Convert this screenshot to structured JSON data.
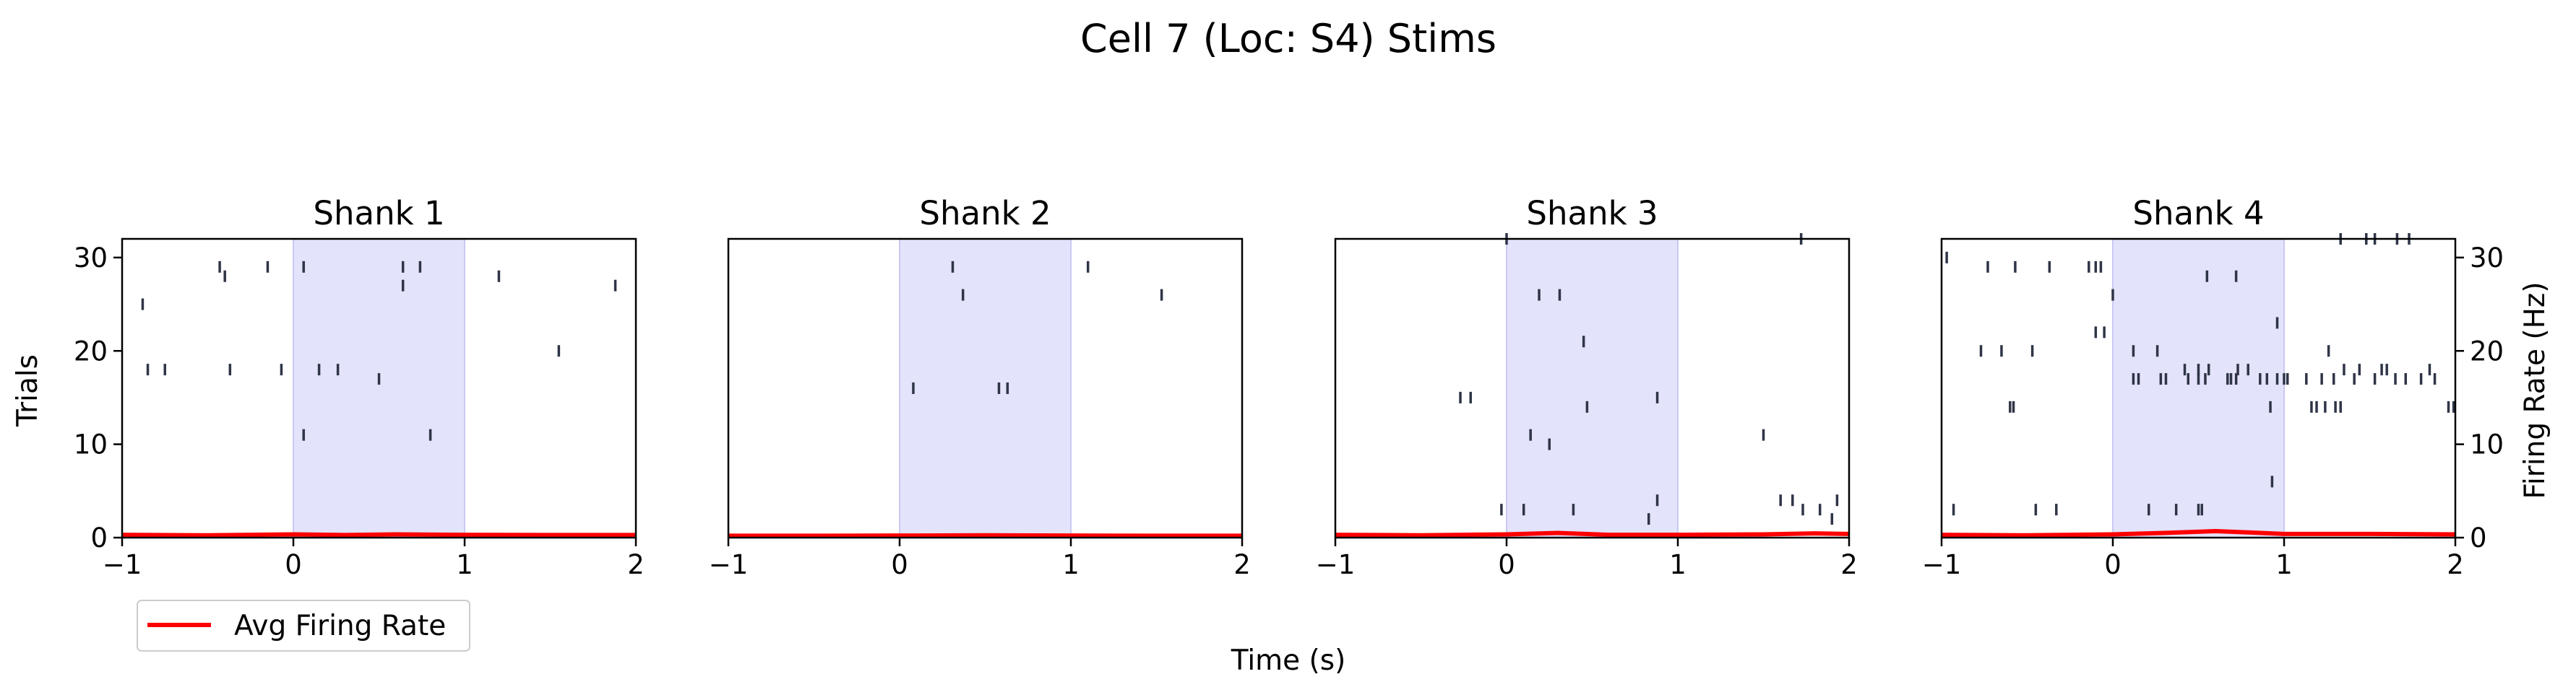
{
  "figure": {
    "suptitle": "Cell 7 (Loc: S4) Stims",
    "xlabel": "Time (s)",
    "ylabel_left": "Trials",
    "ylabel_right": "Firing Rate (Hz)",
    "legend_label": "Avg Firing Rate",
    "colors": {
      "stim_shade": "#e3e3fc",
      "stim_edge": "#c9c9f2",
      "spike": "#2f3547",
      "rate_line": "#ff0000",
      "axis": "#000000"
    }
  },
  "chart_data": [
    {
      "type": "raster",
      "title": "Shank 1",
      "xlim": [
        -1,
        2
      ],
      "xticks": [
        -1,
        0,
        1,
        2
      ],
      "ylim": [
        0,
        32
      ],
      "yticks": [
        0,
        10,
        20,
        30
      ],
      "stim_window": [
        0,
        1
      ],
      "spikes": [
        [
          -0.88,
          25
        ],
        [
          -0.43,
          29
        ],
        [
          -0.4,
          28
        ],
        [
          -0.15,
          29
        ],
        [
          0.06,
          29
        ],
        [
          0.64,
          29
        ],
        [
          0.74,
          29
        ],
        [
          1.2,
          28
        ],
        [
          0.64,
          27
        ],
        [
          1.88,
          27
        ],
        [
          -0.85,
          18
        ],
        [
          -0.75,
          18
        ],
        [
          -0.37,
          18
        ],
        [
          -0.07,
          18
        ],
        [
          0.15,
          18
        ],
        [
          0.26,
          18
        ],
        [
          0.5,
          17
        ],
        [
          1.55,
          20
        ],
        [
          0.06,
          11
        ],
        [
          0.8,
          11
        ]
      ],
      "rate": {
        "x": [
          -1,
          -0.5,
          0,
          0.3,
          0.6,
          1,
          1.5,
          2
        ],
        "y": [
          0.3,
          0.25,
          0.35,
          0.28,
          0.35,
          0.3,
          0.28,
          0.28
        ]
      },
      "rate_ylim": [
        0,
        32
      ]
    },
    {
      "type": "raster",
      "title": "Shank 2",
      "xlim": [
        -1,
        2
      ],
      "xticks": [
        -1,
        0,
        1,
        2
      ],
      "ylim": [
        0,
        32
      ],
      "yticks": [
        0,
        10,
        20,
        30
      ],
      "stim_window": [
        0,
        1
      ],
      "spikes": [
        [
          0.31,
          29
        ],
        [
          1.1,
          29
        ],
        [
          0.37,
          26
        ],
        [
          1.53,
          26
        ],
        [
          0.08,
          16
        ],
        [
          0.58,
          16
        ],
        [
          0.63,
          16
        ]
      ],
      "rate": {
        "x": [
          -1,
          -0.5,
          0,
          0.5,
          1,
          1.5,
          2
        ],
        "y": [
          0.2,
          0.2,
          0.22,
          0.25,
          0.22,
          0.2,
          0.2
        ]
      },
      "rate_ylim": [
        0,
        32
      ]
    },
    {
      "type": "raster",
      "title": "Shank 3",
      "xlim": [
        -1,
        2
      ],
      "xticks": [
        -1,
        0,
        1,
        2
      ],
      "ylim": [
        0,
        32
      ],
      "yticks": [
        0,
        10,
        20,
        30
      ],
      "stim_window": [
        0,
        1
      ],
      "spikes": [
        [
          0.0,
          32
        ],
        [
          1.72,
          32
        ],
        [
          0.19,
          26
        ],
        [
          0.31,
          26
        ],
        [
          0.45,
          21
        ],
        [
          -0.27,
          15
        ],
        [
          -0.21,
          15
        ],
        [
          0.88,
          15
        ],
        [
          0.47,
          14
        ],
        [
          0.14,
          11
        ],
        [
          0.25,
          10
        ],
        [
          1.5,
          11
        ],
        [
          -0.03,
          3
        ],
        [
          0.1,
          3
        ],
        [
          0.39,
          3
        ],
        [
          0.83,
          2
        ],
        [
          0.88,
          4
        ],
        [
          1.6,
          4
        ],
        [
          1.67,
          4
        ],
        [
          1.73,
          3
        ],
        [
          1.83,
          3
        ],
        [
          1.9,
          2
        ],
        [
          1.93,
          4
        ]
      ],
      "rate": {
        "x": [
          -1,
          -0.5,
          0,
          0.3,
          0.6,
          1,
          1.5,
          1.8,
          2
        ],
        "y": [
          0.3,
          0.25,
          0.35,
          0.5,
          0.3,
          0.3,
          0.35,
          0.45,
          0.4
        ]
      },
      "rate_ylim": [
        0,
        32
      ]
    },
    {
      "type": "raster",
      "title": "Shank 4",
      "xlim": [
        -1,
        2
      ],
      "xticks": [
        -1,
        0,
        1,
        2
      ],
      "ylim": [
        0,
        32
      ],
      "yticks": [
        0,
        10,
        20,
        30
      ],
      "y2ticks": [
        0,
        10,
        20,
        30
      ],
      "stim_window": [
        0,
        1
      ],
      "spikes": [
        [
          -0.97,
          30
        ],
        [
          -0.73,
          29
        ],
        [
          -0.57,
          29
        ],
        [
          -0.37,
          29
        ],
        [
          -0.14,
          29
        ],
        [
          -0.1,
          29
        ],
        [
          -0.07,
          29
        ],
        [
          0.0,
          26
        ],
        [
          0.55,
          28
        ],
        [
          0.72,
          28
        ],
        [
          0.96,
          23
        ],
        [
          1.33,
          32
        ],
        [
          1.48,
          32
        ],
        [
          1.53,
          32
        ],
        [
          1.66,
          32
        ],
        [
          1.73,
          32
        ],
        [
          -0.05,
          22
        ],
        [
          -0.1,
          22
        ],
        [
          -0.77,
          20
        ],
        [
          -0.65,
          20
        ],
        [
          -0.47,
          20
        ],
        [
          0.12,
          20
        ],
        [
          0.26,
          20
        ],
        [
          1.26,
          20
        ],
        [
          0.12,
          17
        ],
        [
          0.15,
          17
        ],
        [
          0.28,
          17
        ],
        [
          0.31,
          17
        ],
        [
          0.44,
          17
        ],
        [
          0.5,
          17
        ],
        [
          0.54,
          17
        ],
        [
          0.67,
          17
        ],
        [
          0.69,
          17
        ],
        [
          0.72,
          17
        ],
        [
          0.86,
          17
        ],
        [
          0.9,
          17
        ],
        [
          0.96,
          17
        ],
        [
          1.0,
          17
        ],
        [
          1.02,
          17
        ],
        [
          1.13,
          17
        ],
        [
          1.22,
          17
        ],
        [
          1.29,
          17
        ],
        [
          1.41,
          17
        ],
        [
          1.53,
          17
        ],
        [
          1.65,
          17
        ],
        [
          1.71,
          17
        ],
        [
          1.8,
          17
        ],
        [
          1.88,
          17
        ],
        [
          0.42,
          18
        ],
        [
          0.5,
          18
        ],
        [
          0.56,
          18
        ],
        [
          0.73,
          18
        ],
        [
          0.79,
          18
        ],
        [
          1.35,
          18
        ],
        [
          1.44,
          18
        ],
        [
          1.57,
          18
        ],
        [
          1.6,
          18
        ],
        [
          1.85,
          18
        ],
        [
          -0.6,
          14
        ],
        [
          -0.58,
          14
        ],
        [
          0.92,
          14
        ],
        [
          1.16,
          14
        ],
        [
          1.19,
          14
        ],
        [
          1.24,
          14
        ],
        [
          1.3,
          14
        ],
        [
          1.33,
          14
        ],
        [
          1.96,
          14
        ],
        [
          1.99,
          14
        ],
        [
          -0.93,
          3
        ],
        [
          -0.45,
          3
        ],
        [
          -0.33,
          3
        ],
        [
          0.21,
          3
        ],
        [
          0.37,
          3
        ],
        [
          0.5,
          3
        ],
        [
          0.52,
          3
        ],
        [
          0.93,
          6
        ]
      ],
      "rate": {
        "x": [
          -1,
          -0.5,
          0,
          0.3,
          0.6,
          0.8,
          1,
          1.5,
          2
        ],
        "y": [
          0.3,
          0.25,
          0.35,
          0.5,
          0.7,
          0.55,
          0.4,
          0.4,
          0.35
        ]
      },
      "rate_ylim": [
        0,
        32
      ]
    }
  ]
}
